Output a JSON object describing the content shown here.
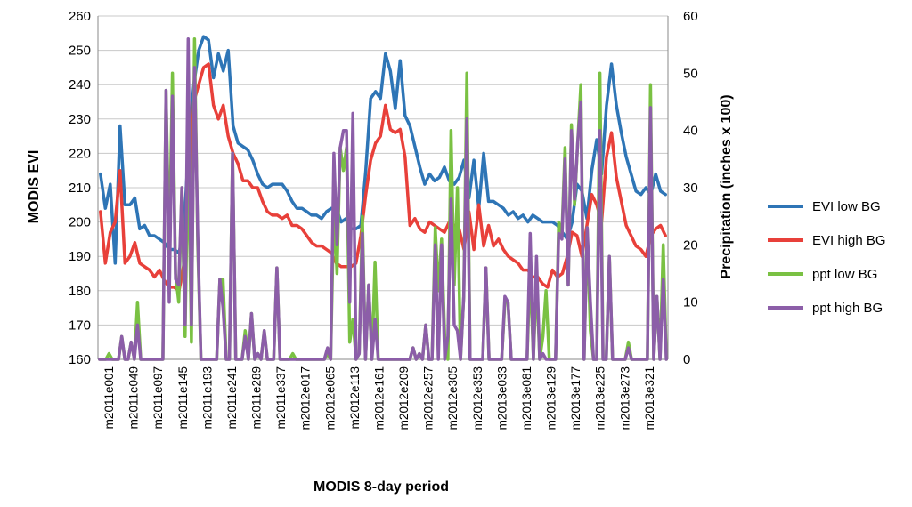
{
  "chart_data": {
    "type": "line",
    "title": "",
    "xlabel": "MODIS 8-day period",
    "ylabel": "MODIS EVI",
    "y2label": "Precipitation (inches x 100)",
    "ylim": [
      160,
      260
    ],
    "y2lim": [
      0,
      60
    ],
    "grid": "horizontal",
    "legend_position": "right",
    "tick_labels": [
      "m2011e001",
      "m2011e049",
      "m2011e097",
      "m2011e145",
      "m2011e193",
      "m2011e241",
      "m2011e289",
      "m2011e337",
      "m2012e017",
      "m2012e065",
      "m2012e113",
      "m2012e161",
      "m2012e209",
      "m2012e257",
      "m2012e305",
      "m2012e353",
      "m2013e033",
      "m2013e081",
      "m2013e129",
      "m2013e177",
      "m2013e225",
      "m2013e273",
      "m2013e321"
    ],
    "series": [
      {
        "name": "EVI low BG",
        "axis": "left",
        "color": "#2e75b6",
        "values": [
          214,
          204,
          211,
          188,
          228,
          205,
          205,
          207,
          198,
          199,
          196,
          196,
          195,
          194,
          192,
          192,
          191,
          198,
          224,
          240,
          250,
          254,
          253,
          242,
          249,
          244,
          250,
          228,
          223,
          222,
          221,
          218,
          214,
          211,
          210,
          211,
          211,
          211,
          209,
          206,
          204,
          204,
          203,
          202,
          202,
          201,
          203,
          204,
          204,
          200,
          201,
          198,
          198,
          199,
          215,
          236,
          238,
          236,
          249,
          244,
          233,
          247,
          231,
          228,
          222,
          216,
          211,
          214,
          212,
          213,
          216,
          212,
          211,
          213,
          218,
          207,
          218,
          204,
          220,
          206,
          206,
          205,
          204,
          202,
          203,
          201,
          202,
          200,
          202,
          201,
          200,
          200,
          200,
          199,
          197,
          195,
          200,
          211,
          209,
          201,
          215,
          224,
          214,
          234,
          246,
          234,
          226,
          219,
          214,
          209,
          208,
          210,
          208,
          214,
          209,
          208
        ],
        "rows": [
          214,
          204,
          211,
          188,
          228,
          205,
          205,
          207,
          198,
          199,
          196,
          196,
          195,
          194,
          192,
          192,
          191,
          198,
          224,
          240,
          250,
          254,
          253,
          242,
          249,
          244,
          250,
          228,
          223,
          222,
          221,
          218,
          214,
          211,
          210,
          211,
          211,
          211,
          209,
          206,
          204,
          204,
          203,
          202,
          202,
          201,
          203,
          204,
          204,
          200,
          201,
          198,
          198,
          199,
          215,
          236,
          238,
          236,
          249,
          244,
          233,
          247,
          231,
          228,
          222,
          216,
          211,
          214,
          212,
          213,
          216,
          212,
          211,
          213,
          218,
          207,
          218,
          204,
          220,
          206,
          206,
          205,
          204,
          202,
          203,
          201,
          202,
          200,
          202,
          201,
          200,
          200,
          200,
          199,
          197,
          195,
          200,
          211,
          209,
          201,
          215,
          224,
          214,
          234,
          246,
          234,
          226,
          219,
          214,
          209,
          208,
          210,
          208,
          214,
          209,
          208
        ]
      },
      {
        "name": "EVI high BG",
        "color": "#e8403a",
        "rows": [
          203,
          188,
          197,
          200,
          215,
          188,
          190,
          194,
          188,
          187,
          186,
          184,
          186,
          183,
          181,
          181,
          180,
          188,
          206,
          235,
          240,
          245,
          246,
          234,
          230,
          234,
          225,
          220,
          217,
          212,
          212,
          210,
          210,
          206,
          203,
          202,
          202,
          201,
          202,
          199,
          199,
          198,
          196,
          194,
          193,
          193,
          192,
          191,
          188,
          187,
          187,
          187,
          188,
          196,
          208,
          218,
          223,
          225,
          234,
          227,
          226,
          227,
          219,
          199,
          201,
          198,
          197,
          200,
          199,
          198,
          197,
          200,
          199,
          198,
          192,
          203,
          192,
          205,
          193,
          199,
          193,
          195,
          192,
          190,
          189,
          188,
          186,
          186,
          184,
          184,
          182,
          181,
          186,
          184,
          185,
          190,
          197,
          196,
          190,
          199,
          208,
          205,
          200,
          219,
          226,
          213,
          206,
          199,
          196,
          193,
          192,
          190,
          196,
          198,
          199,
          196
        ]
      },
      {
        "name": "ppt low BG",
        "color": "#7ac143",
        "rows": [
          0,
          0,
          0,
          1,
          0,
          0,
          0,
          4,
          0,
          0,
          3,
          0,
          10,
          0,
          0,
          0,
          0,
          0,
          0,
          0,
          0,
          47,
          18,
          50,
          15,
          10,
          30,
          4,
          38,
          3,
          56,
          20,
          0,
          0,
          0,
          0,
          0,
          0,
          14,
          14,
          0,
          0,
          36,
          0,
          0,
          0,
          5,
          0,
          8,
          0,
          1,
          0,
          5,
          0,
          0,
          0,
          16,
          0,
          0,
          0,
          0,
          1,
          0,
          0,
          0,
          0,
          0,
          0,
          0,
          0,
          0,
          0,
          1,
          0,
          27,
          15,
          37,
          33,
          37,
          3,
          7,
          0,
          1,
          25,
          0,
          13,
          0,
          17,
          0,
          0,
          0,
          0,
          0,
          0,
          0,
          0,
          0,
          0,
          0,
          2,
          0,
          1,
          0,
          6,
          0,
          0,
          23,
          12,
          21,
          4,
          0,
          40,
          13,
          30,
          0,
          11,
          50,
          0,
          0,
          0,
          0,
          0,
          16,
          0,
          0,
          0,
          0,
          0,
          10,
          10,
          0,
          0,
          0,
          0,
          0,
          0,
          16,
          0,
          14,
          0,
          4,
          12,
          0,
          0,
          0,
          24,
          22,
          37,
          13,
          41,
          27,
          38,
          48,
          0,
          23,
          5,
          0,
          0,
          50,
          0,
          0,
          18,
          0,
          0,
          0,
          0,
          0,
          3,
          0,
          0,
          0,
          0,
          0,
          0,
          48,
          0,
          11,
          0,
          20,
          0
        ]
      },
      {
        "name": "ppt high BG",
        "color": "#8c5ea8",
        "rows": [
          0,
          0,
          0,
          0,
          0,
          0,
          0,
          4,
          0,
          0,
          3,
          0,
          6,
          0,
          0,
          0,
          0,
          0,
          0,
          0,
          0,
          47,
          10,
          46,
          14,
          13,
          30,
          6,
          56,
          6,
          51,
          22,
          0,
          0,
          0,
          0,
          0,
          0,
          14,
          9,
          0,
          0,
          36,
          0,
          0,
          0,
          4,
          0,
          8,
          0,
          1,
          0,
          5,
          0,
          0,
          0,
          16,
          0,
          0,
          0,
          0,
          0,
          0,
          0,
          0,
          0,
          0,
          0,
          0,
          0,
          0,
          0,
          2,
          0,
          36,
          20,
          37,
          40,
          40,
          10,
          43,
          0,
          1,
          22,
          0,
          13,
          0,
          7,
          0,
          0,
          0,
          0,
          0,
          0,
          0,
          0,
          0,
          0,
          0,
          2,
          0,
          1,
          0,
          6,
          0,
          0,
          20,
          0,
          20,
          0,
          4,
          28,
          6,
          5,
          0,
          11,
          42,
          0,
          0,
          0,
          0,
          0,
          16,
          0,
          0,
          0,
          0,
          0,
          11,
          10,
          0,
          0,
          0,
          0,
          0,
          0,
          22,
          0,
          18,
          0,
          1,
          0,
          0,
          0,
          0,
          22,
          21,
          35,
          13,
          40,
          28,
          38,
          45,
          0,
          23,
          10,
          0,
          0,
          40,
          0,
          0,
          18,
          0,
          0,
          0,
          0,
          0,
          2,
          0,
          0,
          0,
          0,
          0,
          0,
          44,
          0,
          11,
          0,
          14,
          0
        ]
      }
    ]
  }
}
